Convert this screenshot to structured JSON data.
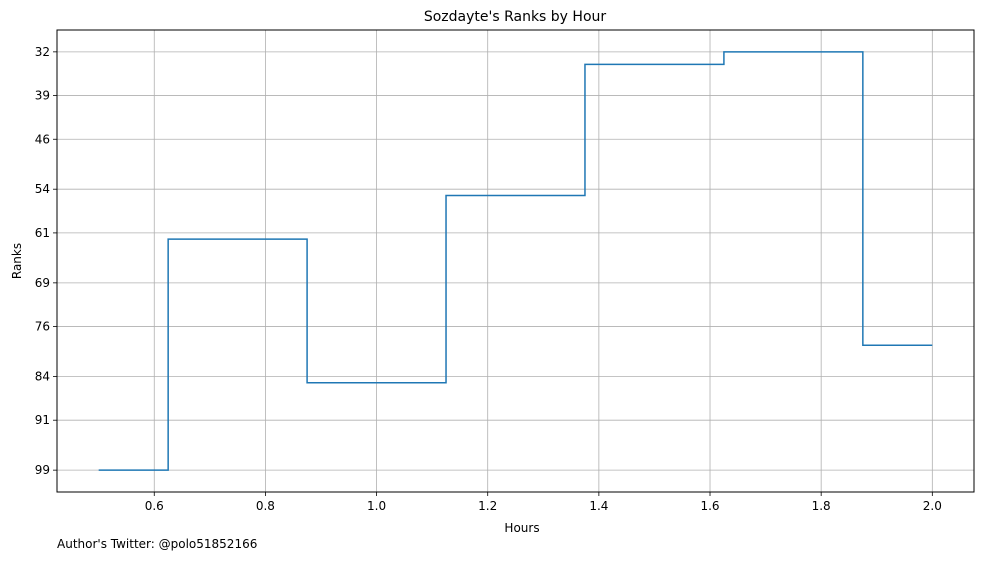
{
  "chart_data": {
    "type": "line",
    "drawstyle": "steps-mid",
    "title": "Sozdayte's Ranks by Hour",
    "xlabel": "Hours",
    "ylabel": "Ranks",
    "x": [
      0.5,
      0.75,
      1.0,
      1.25,
      1.5,
      1.75,
      2.0
    ],
    "series": [
      {
        "values": [
          99,
          62,
          85,
          55,
          34,
          32,
          79
        ],
        "color": "#1f77b4"
      }
    ],
    "xticks": [
      "0.6",
      "0.8",
      "1.0",
      "1.2",
      "1.4",
      "1.6",
      "1.8",
      "2.0"
    ],
    "yticks": [
      "32",
      "39",
      "46",
      "54",
      "61",
      "69",
      "76",
      "84",
      "91",
      "99"
    ],
    "xlim": [
      0.425,
      2.075
    ],
    "ylim": [
      102.5,
      28.5
    ],
    "y_inverted": true,
    "grid": true
  },
  "footer": {
    "text": "Author's Twitter: @polo51852166"
  }
}
